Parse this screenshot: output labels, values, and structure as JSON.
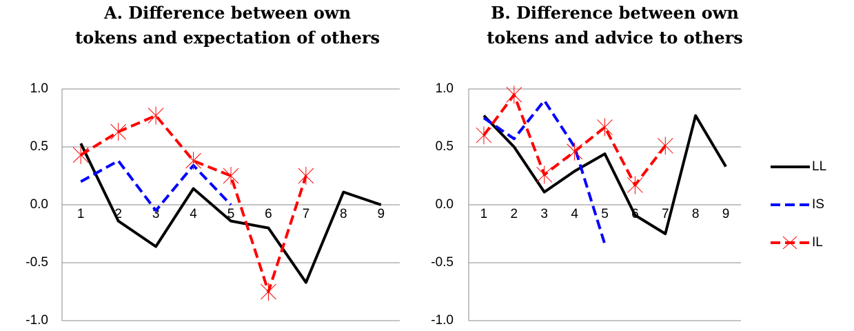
{
  "chart_data": [
    {
      "type": "line",
      "title": "A. Difference between own tokens and expectation of others",
      "categories": [
        "1",
        "2",
        "3",
        "4",
        "5",
        "6",
        "7",
        "8",
        "9"
      ],
      "ylim": [
        -1.0,
        1.0
      ],
      "yticks": [
        {
          "value": 1.0,
          "label": "1.0"
        },
        {
          "value": 0.5,
          "label": "0.5"
        },
        {
          "value": 0.0,
          "label": "0.0"
        },
        {
          "value": -0.5,
          "label": "-0.5"
        },
        {
          "value": -1.0,
          "label": "-1.0"
        }
      ],
      "grid": true,
      "series": [
        {
          "name": "LL",
          "color": "#000000",
          "dash": "solid",
          "marker": "none",
          "values": [
            0.53,
            -0.14,
            -0.36,
            0.14,
            -0.14,
            -0.2,
            -0.67,
            0.11,
            0.0
          ]
        },
        {
          "name": "IS",
          "color": "#0000ff",
          "dash": "dashed",
          "marker": "none",
          "values": [
            0.2,
            0.38,
            -0.05,
            0.34,
            0.0,
            null,
            null,
            null,
            null
          ]
        },
        {
          "name": "IL",
          "color": "#ff0000",
          "dash": "dashed",
          "marker": "x",
          "values": [
            0.43,
            0.63,
            0.77,
            0.38,
            0.25,
            -0.75,
            0.25,
            null,
            null
          ]
        }
      ]
    },
    {
      "type": "line",
      "title": "B. Difference between own tokens and advice to others",
      "categories": [
        "1",
        "2",
        "3",
        "4",
        "5",
        "6",
        "7",
        "8",
        "9"
      ],
      "ylim": [
        -1.0,
        1.0
      ],
      "yticks": [
        {
          "value": 1.0,
          "label": "1.0"
        },
        {
          "value": 0.5,
          "label": "0.5"
        },
        {
          "value": 0.0,
          "label": "0.0"
        },
        {
          "value": -0.5,
          "label": "-0.5"
        },
        {
          "value": -1.0,
          "label": "-1.0"
        }
      ],
      "grid": true,
      "legend": "right",
      "series": [
        {
          "name": "LL",
          "color": "#000000",
          "dash": "solid",
          "marker": "none",
          "values": [
            0.77,
            0.5,
            0.11,
            0.29,
            0.44,
            -0.09,
            -0.25,
            0.77,
            0.33
          ]
        },
        {
          "name": "IS",
          "color": "#0000ff",
          "dash": "dashed",
          "marker": "none",
          "values": [
            0.75,
            0.57,
            0.9,
            0.5,
            -0.34,
            null,
            null,
            null,
            null
          ]
        },
        {
          "name": "IL",
          "color": "#ff0000",
          "dash": "dashed",
          "marker": "x",
          "values": [
            0.6,
            0.95,
            0.26,
            0.46,
            0.67,
            0.17,
            0.51,
            null,
            null
          ]
        }
      ]
    }
  ]
}
